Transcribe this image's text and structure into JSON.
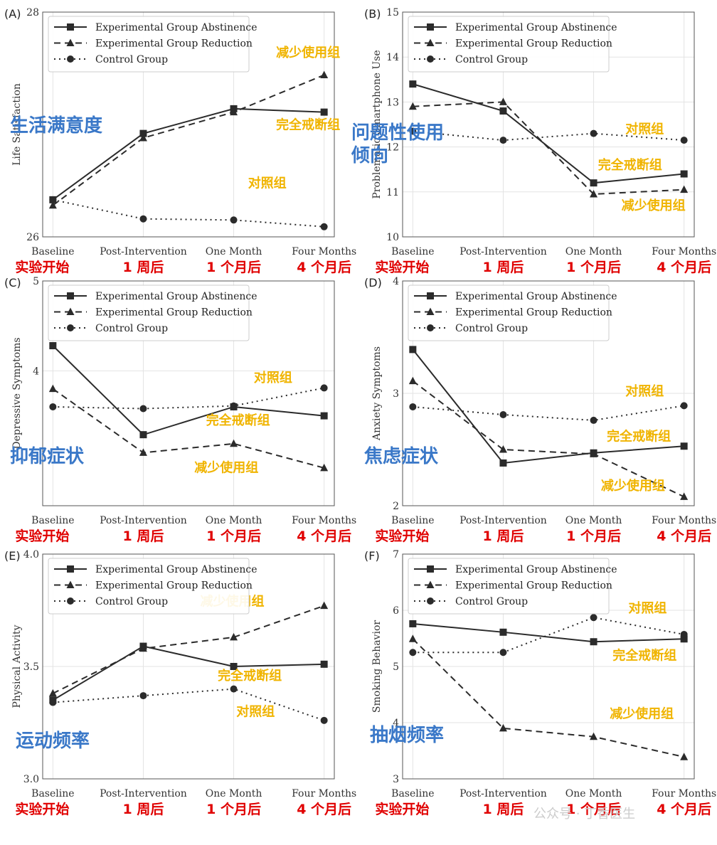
{
  "colors": {
    "line": "#2b2b2b",
    "grid": "#e3e3e3",
    "red": "#e00000",
    "yellow": "#f0b400",
    "blue": "#3a78c8"
  },
  "legend": [
    "Experimental Group Abstinence",
    "Experimental Group Reduction",
    "Control Group"
  ],
  "timepoints_cn": [
    "实验开始",
    "1 周后",
    "1 个月后",
    "4 个月后"
  ],
  "watermark": "公众号 · 丁香医生",
  "chart_data": [
    {
      "panel": "(A)",
      "type": "line",
      "ylabel": "Life Satisfaction",
      "cn_label": "生活满意度",
      "categories": [
        "Baseline",
        "Post-Intervention",
        "One Month",
        "Four Months"
      ],
      "ylim": [
        26,
        28
      ],
      "yticks": [
        "26",
        "28"
      ],
      "ytick_values": [
        26,
        28
      ],
      "series": [
        {
          "name": "Experimental Group Abstinence",
          "values": [
            26.33,
            26.92,
            27.14,
            27.11
          ],
          "cn": "完全戒断组",
          "cn_pos": [
            0.91,
            0.52
          ]
        },
        {
          "name": "Experimental Group Reduction",
          "values": [
            26.28,
            26.88,
            27.11,
            27.44
          ],
          "cn": "减少使用组",
          "cn_pos": [
            0.91,
            0.2
          ]
        },
        {
          "name": "Control Group",
          "values": [
            26.33,
            26.16,
            26.15,
            26.09
          ],
          "cn": "对照组",
          "cn_pos": [
            0.77,
            0.78
          ]
        }
      ]
    },
    {
      "panel": "(B)",
      "type": "line",
      "ylabel": "Problematic Smartphone Use",
      "cn_label": "问题性使用倾向",
      "categories": [
        "Baseline",
        "Post-Intervention",
        "One Month",
        "Four Months"
      ],
      "ylim": [
        10,
        15
      ],
      "yticks": [
        "10",
        "11",
        "12",
        "13",
        "14",
        "15"
      ],
      "ytick_values": [
        10,
        11,
        12,
        13,
        14,
        15
      ],
      "series": [
        {
          "name": "Experimental Group Abstinence",
          "values": [
            13.4,
            12.8,
            11.2,
            11.4
          ],
          "cn": "完全戒断组",
          "cn_pos": [
            0.78,
            0.7
          ]
        },
        {
          "name": "Experimental Group Reduction",
          "values": [
            12.9,
            13.0,
            10.95,
            11.05
          ],
          "cn": "减少使用组",
          "cn_pos": [
            0.86,
            0.88
          ]
        },
        {
          "name": "Control Group",
          "values": [
            12.35,
            12.15,
            12.3,
            12.15
          ],
          "cn": "对照组",
          "cn_pos": [
            0.83,
            0.54
          ]
        }
      ]
    },
    {
      "panel": "(C)",
      "type": "line",
      "ylabel": "Depressive Symptoms",
      "cn_label": "抑郁症状",
      "categories": [
        "Baseline",
        "Post-Intervention",
        "One Month",
        "Four Months"
      ],
      "ylim": [
        2.5,
        5
      ],
      "yticks": [
        "4",
        "5"
      ],
      "ytick_values": [
        4,
        5
      ],
      "series": [
        {
          "name": "Experimental Group Abstinence",
          "values": [
            4.28,
            3.29,
            3.6,
            3.5
          ],
          "cn": "完全戒断组",
          "cn_pos": [
            0.67,
            0.64
          ]
        },
        {
          "name": "Experimental Group Reduction",
          "values": [
            3.8,
            3.09,
            3.19,
            2.92
          ],
          "cn": "减少使用组",
          "cn_pos": [
            0.63,
            0.85
          ]
        },
        {
          "name": "Control Group",
          "values": [
            3.6,
            3.58,
            3.61,
            3.81
          ],
          "cn": "对照组",
          "cn_pos": [
            0.79,
            0.45
          ]
        }
      ]
    },
    {
      "panel": "(D)",
      "type": "line",
      "ylabel": "Anxiety Symptoms",
      "cn_label": "焦虑症状",
      "categories": [
        "Baseline",
        "Post-Intervention",
        "One Month",
        "Four Months"
      ],
      "ylim": [
        2,
        4
      ],
      "yticks": [
        "2",
        "3",
        "4"
      ],
      "ytick_values": [
        2,
        3,
        4
      ],
      "series": [
        {
          "name": "Experimental Group Abstinence",
          "values": [
            3.39,
            2.38,
            2.47,
            2.53
          ],
          "cn": "完全戒断组",
          "cn_pos": [
            0.81,
            0.71
          ]
        },
        {
          "name": "Experimental Group Reduction",
          "values": [
            3.11,
            2.5,
            2.46,
            2.08
          ],
          "cn": "减少使用组",
          "cn_pos": [
            0.79,
            0.93
          ]
        },
        {
          "name": "Control Group",
          "values": [
            2.88,
            2.81,
            2.76,
            2.89
          ],
          "cn": "对照组",
          "cn_pos": [
            0.83,
            0.51
          ]
        }
      ]
    },
    {
      "panel": "(E)",
      "type": "line",
      "ylabel": "Physical Activity",
      "cn_label": "运动频率",
      "categories": [
        "Baseline",
        "Post-Intervention",
        "One Month",
        "Four Months"
      ],
      "ylim": [
        3.0,
        4.0
      ],
      "yticks": [
        "3.0",
        "3.5",
        "4.0"
      ],
      "ytick_values": [
        3.0,
        3.5,
        4.0
      ],
      "series": [
        {
          "name": "Experimental Group Abstinence",
          "values": [
            3.35,
            3.59,
            3.5,
            3.51
          ],
          "cn": "完全戒断组",
          "cn_pos": [
            0.71,
            0.56
          ]
        },
        {
          "name": "Experimental Group Reduction",
          "values": [
            3.38,
            3.58,
            3.63,
            3.77
          ],
          "cn": "减少使用组",
          "cn_pos": [
            0.65,
            0.23
          ]
        },
        {
          "name": "Control Group",
          "values": [
            3.34,
            3.37,
            3.4,
            3.26
          ],
          "cn": "对照组",
          "cn_pos": [
            0.73,
            0.72
          ]
        }
      ]
    },
    {
      "panel": "(F)",
      "type": "line",
      "ylabel": "Smoking Behavior",
      "cn_label": "抽烟频率",
      "categories": [
        "Baseline",
        "Post-Intervention",
        "One Month",
        "Four Months"
      ],
      "ylim": [
        3,
        7
      ],
      "yticks": [
        "3",
        "4",
        "5",
        "6",
        "7"
      ],
      "ytick_values": [
        3,
        4,
        5,
        6,
        7
      ],
      "series": [
        {
          "name": "Experimental Group Abstinence",
          "values": [
            5.76,
            5.61,
            5.44,
            5.49
          ],
          "cn": "完全戒断组",
          "cn_pos": [
            0.83,
            0.47
          ]
        },
        {
          "name": "Experimental Group Reduction",
          "values": [
            5.49,
            3.9,
            3.75,
            3.39
          ],
          "cn": "减少使用组",
          "cn_pos": [
            0.82,
            0.73
          ]
        },
        {
          "name": "Control Group",
          "values": [
            5.25,
            5.25,
            5.87,
            5.57
          ],
          "cn": "对照组",
          "cn_pos": [
            0.84,
            0.26
          ]
        }
      ]
    }
  ]
}
